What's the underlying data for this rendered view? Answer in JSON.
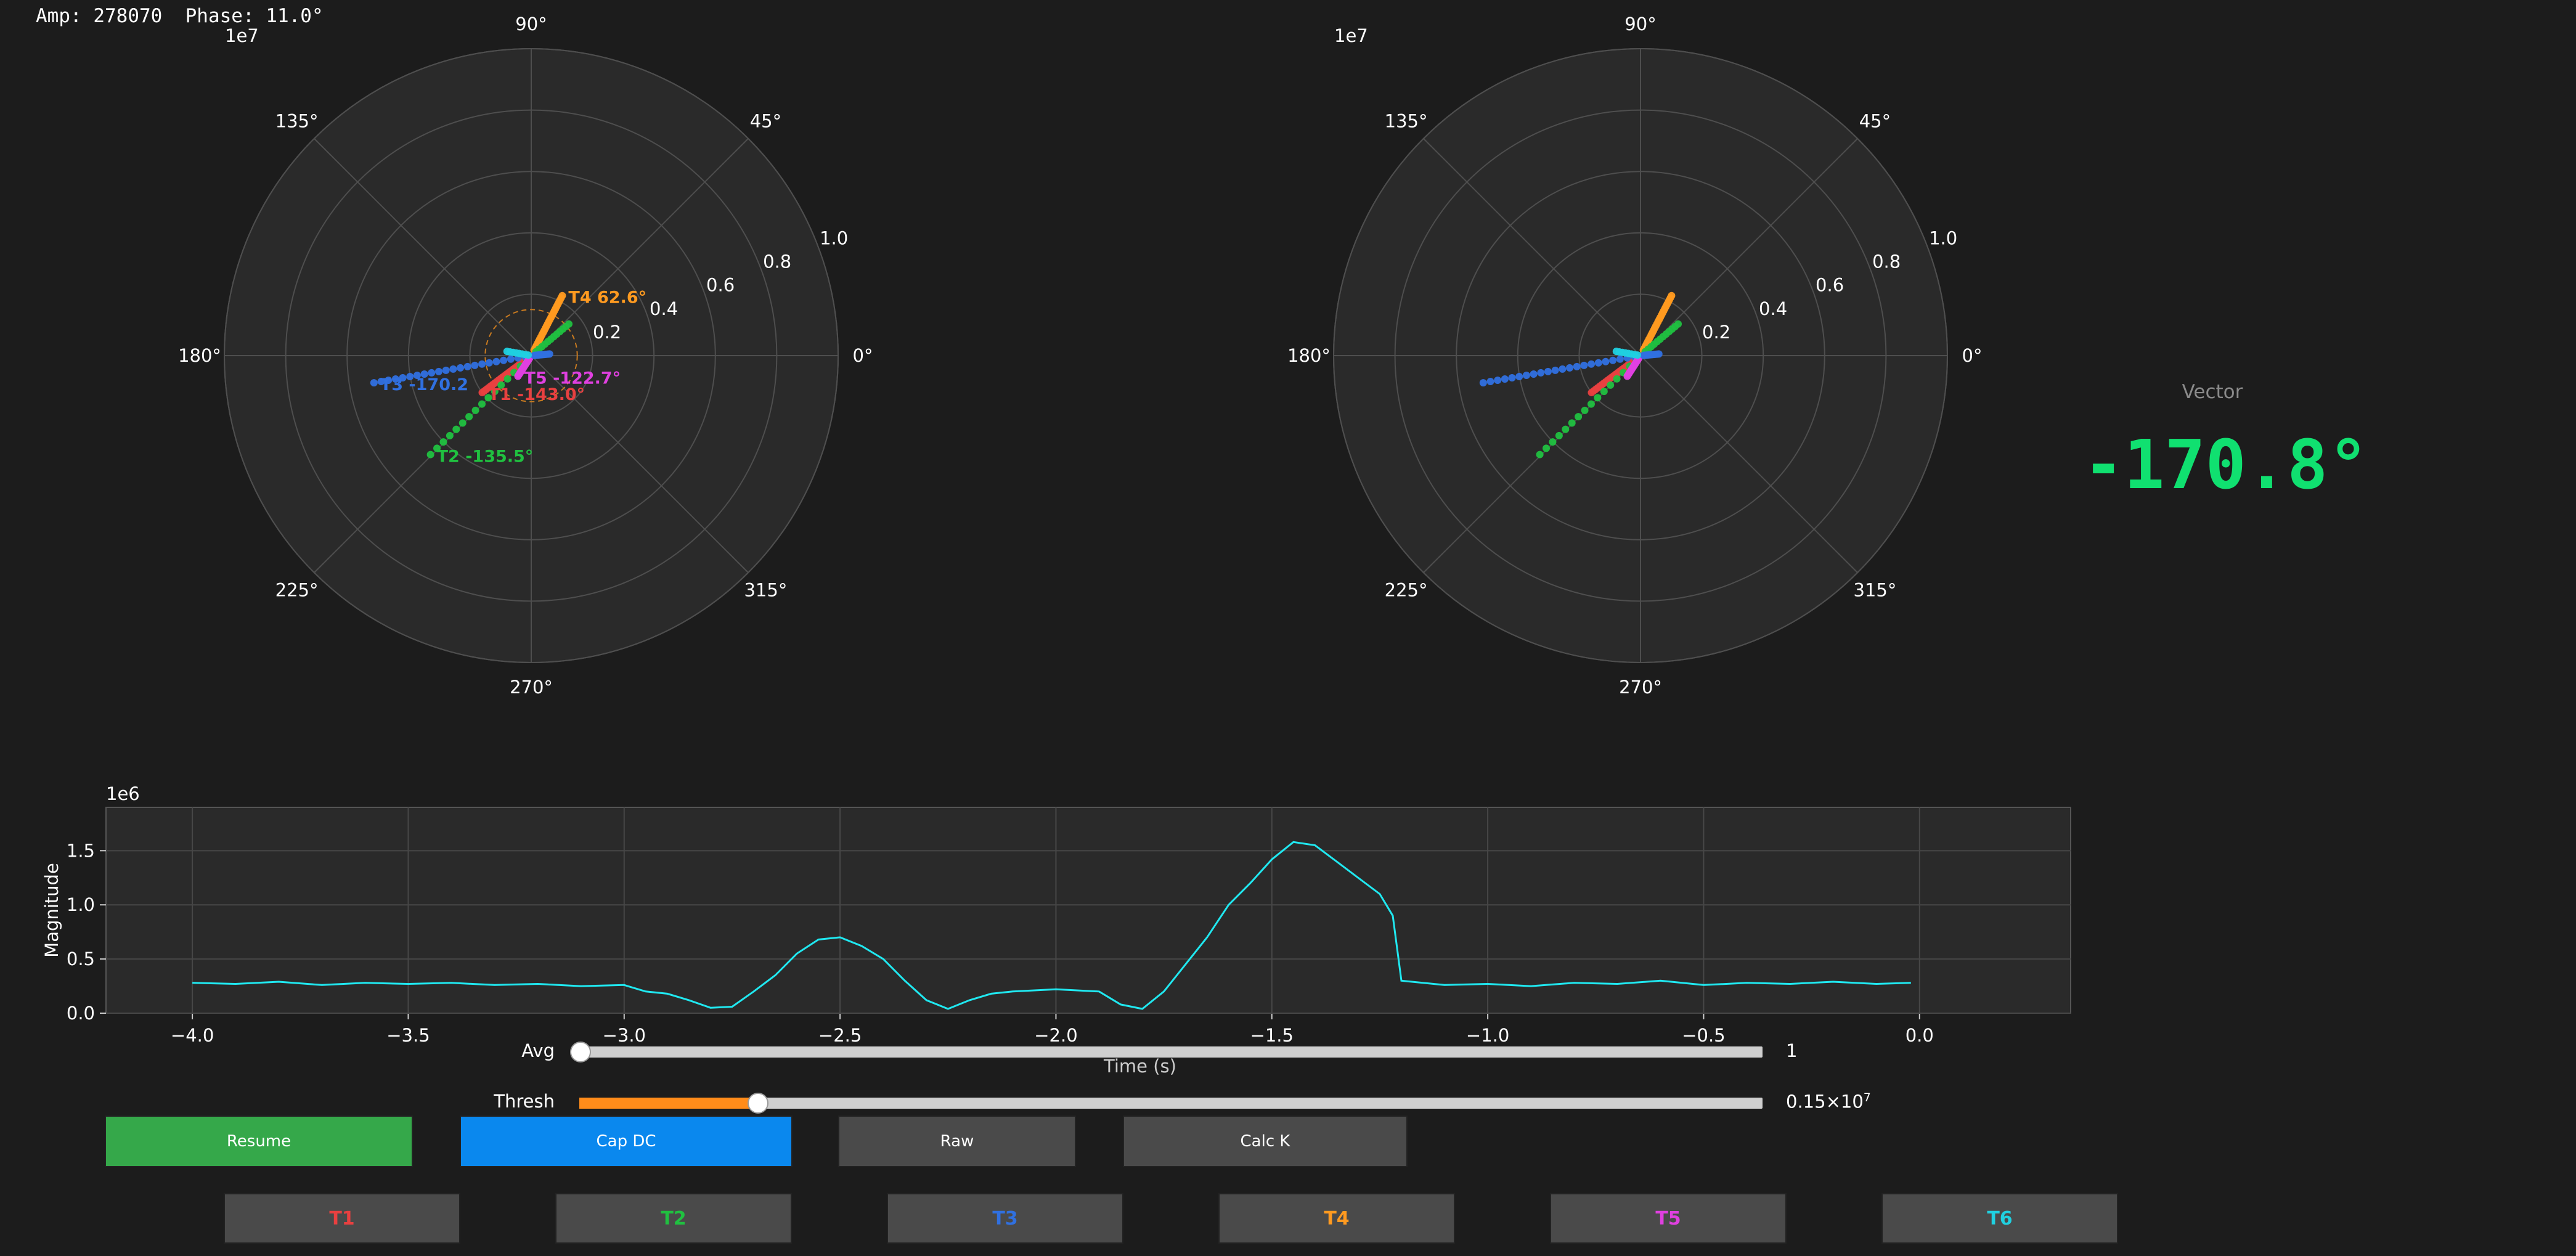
{
  "readout": {
    "amp_label": "Amp:",
    "amp_value": "278070",
    "phase_label": "Phase:",
    "phase_value": "11.0°"
  },
  "vector": {
    "label": "Vector",
    "value": "-170.8°",
    "color": "#10e070"
  },
  "chart_data": [
    {
      "type": "scatter",
      "projection": "polar",
      "scale_label": "1e7",
      "radial_ticks": [
        "0.2",
        "0.4",
        "0.6",
        "0.8",
        "1.0"
      ],
      "angle_ticks": [
        "0°",
        "45°",
        "90°",
        "135°",
        "180°",
        "225°",
        "270°",
        "315°"
      ],
      "rlim": [
        0,
        1.0
      ],
      "ring_radius": 0.15,
      "series": [
        {
          "id": "T1",
          "color": "#e84040",
          "angle_deg": -143.0,
          "r_start": 0.01,
          "r_end": 0.2,
          "n": 24
        },
        {
          "id": "T2",
          "color": "#20c040",
          "angle_deg": -135.5,
          "r_start": 0.02,
          "r_end": 0.46,
          "n": 16
        },
        {
          "id": "T3",
          "color": "#3070e0",
          "angle_deg": -170.2,
          "r_start": 0.02,
          "r_end": 0.52,
          "n": 22
        },
        {
          "id": "T4",
          "color": "#ff9a20",
          "angle_deg": 62.6,
          "r_start": 0.02,
          "r_end": 0.22,
          "n": 26
        },
        {
          "id": "T5",
          "color": "#e040e0",
          "angle_deg": -122.7,
          "r_start": 0.01,
          "r_end": 0.08,
          "n": 14
        },
        {
          "id": "T2b",
          "color": "#20c040",
          "angle_deg": 40.0,
          "r_start": 0.02,
          "r_end": 0.16,
          "n": 12
        },
        {
          "id": "T3b",
          "color": "#3070e0",
          "angle_deg": 5.0,
          "r_start": 0.01,
          "r_end": 0.06,
          "n": 10
        },
        {
          "id": "T6",
          "color": "#20d0e0",
          "angle_deg": 170.0,
          "r_start": 0.01,
          "r_end": 0.08,
          "n": 8
        }
      ],
      "annotations": [
        {
          "id": "T4",
          "text": "T4 62.6°",
          "color": "#ff9a20"
        },
        {
          "id": "T3",
          "text": "T3 -170.2",
          "color": "#3070e0"
        },
        {
          "id": "T1",
          "text": "T1 -143.0°",
          "color": "#e84040"
        },
        {
          "id": "T5",
          "text": "T5 -122.7°",
          "color": "#e040e0"
        },
        {
          "id": "T2",
          "text": "T2 -135.5°",
          "color": "#20c040"
        }
      ]
    },
    {
      "type": "scatter",
      "projection": "polar",
      "scale_label": "1e7",
      "radial_ticks": [
        "0.2",
        "0.4",
        "0.6",
        "0.8",
        "1.0"
      ],
      "angle_ticks": [
        "0°",
        "45°",
        "90°",
        "135°",
        "180°",
        "225°",
        "270°",
        "315°"
      ],
      "rlim": [
        0,
        1.0
      ],
      "series": [
        {
          "id": "T1",
          "color": "#e84040",
          "angle_deg": -143.0,
          "r_start": 0.01,
          "r_end": 0.2,
          "n": 24
        },
        {
          "id": "T2",
          "color": "#20c040",
          "angle_deg": -135.5,
          "r_start": 0.02,
          "r_end": 0.46,
          "n": 16
        },
        {
          "id": "T3",
          "color": "#3070e0",
          "angle_deg": -170.2,
          "r_start": 0.02,
          "r_end": 0.52,
          "n": 22
        },
        {
          "id": "T4",
          "color": "#ff9a20",
          "angle_deg": 62.6,
          "r_start": 0.02,
          "r_end": 0.22,
          "n": 26
        },
        {
          "id": "T5",
          "color": "#e040e0",
          "angle_deg": -122.7,
          "r_start": 0.01,
          "r_end": 0.08,
          "n": 14
        },
        {
          "id": "T2b",
          "color": "#20c040",
          "angle_deg": 40.0,
          "r_start": 0.02,
          "r_end": 0.16,
          "n": 12
        },
        {
          "id": "T3b",
          "color": "#3070e0",
          "angle_deg": 5.0,
          "r_start": 0.01,
          "r_end": 0.06,
          "n": 10
        },
        {
          "id": "T6",
          "color": "#20d0e0",
          "angle_deg": 170.0,
          "r_start": 0.01,
          "r_end": 0.08,
          "n": 8
        }
      ]
    },
    {
      "type": "line",
      "scale_label": "1e6",
      "xlabel": "Time (s)",
      "ylabel": "Magnitude",
      "xlim": [
        -4.2,
        0.35
      ],
      "ylim": [
        0,
        1.9
      ],
      "xticks": [
        "−4.0",
        "−3.5",
        "−3.0",
        "−2.5",
        "−2.0",
        "−1.5",
        "−1.0",
        "−0.5",
        "0.0"
      ],
      "yticks": [
        "0.0",
        "0.5",
        "1.0",
        "1.5"
      ],
      "grid": true,
      "series": [
        {
          "color": "#20e8f0",
          "x": [
            -4.0,
            -3.9,
            -3.8,
            -3.7,
            -3.6,
            -3.5,
            -3.4,
            -3.3,
            -3.2,
            -3.1,
            -3.0,
            -2.95,
            -2.9,
            -2.85,
            -2.8,
            -2.75,
            -2.7,
            -2.65,
            -2.6,
            -2.55,
            -2.5,
            -2.45,
            -2.4,
            -2.35,
            -2.3,
            -2.25,
            -2.2,
            -2.15,
            -2.1,
            -2.0,
            -1.9,
            -1.85,
            -1.8,
            -1.75,
            -1.7,
            -1.65,
            -1.6,
            -1.55,
            -1.5,
            -1.45,
            -1.4,
            -1.35,
            -1.3,
            -1.25,
            -1.22,
            -1.2,
            -1.1,
            -1.0,
            -0.9,
            -0.8,
            -0.7,
            -0.6,
            -0.5,
            -0.4,
            -0.3,
            -0.2,
            -0.1,
            -0.02
          ],
          "y": [
            0.28,
            0.27,
            0.29,
            0.26,
            0.28,
            0.27,
            0.28,
            0.26,
            0.27,
            0.25,
            0.26,
            0.2,
            0.18,
            0.12,
            0.05,
            0.06,
            0.2,
            0.35,
            0.55,
            0.68,
            0.7,
            0.62,
            0.5,
            0.3,
            0.12,
            0.04,
            0.12,
            0.18,
            0.2,
            0.22,
            0.2,
            0.08,
            0.04,
            0.2,
            0.45,
            0.7,
            1.0,
            1.2,
            1.42,
            1.58,
            1.55,
            1.4,
            1.25,
            1.1,
            0.9,
            0.3,
            0.26,
            0.27,
            0.25,
            0.28,
            0.27,
            0.3,
            0.26,
            0.28,
            0.27,
            0.29,
            0.27,
            0.28
          ]
        }
      ]
    }
  ],
  "sliders": {
    "avg": {
      "label": "Avg",
      "value": "1",
      "fraction": 0.0
    },
    "thresh": {
      "label": "Thresh",
      "value_main": "0.15×10",
      "value_exp": "7",
      "fraction": 0.15
    }
  },
  "buttons": {
    "resume": {
      "label": "Resume",
      "color": "#35a84a"
    },
    "cap_dc": {
      "label": "Cap DC",
      "color": "#0a88ee"
    },
    "raw": {
      "label": "Raw",
      "color": "#4a4a4a"
    },
    "calc_k": {
      "label": "Calc K",
      "color": "#4a4a4a"
    }
  },
  "terminals": [
    {
      "label": "T1",
      "color": "#e84040"
    },
    {
      "label": "T2",
      "color": "#20c040"
    },
    {
      "label": "T3",
      "color": "#3070e0"
    },
    {
      "label": "T4",
      "color": "#ff9a20"
    },
    {
      "label": "T5",
      "color": "#e040e0"
    },
    {
      "label": "T6",
      "color": "#20d0e0"
    }
  ]
}
